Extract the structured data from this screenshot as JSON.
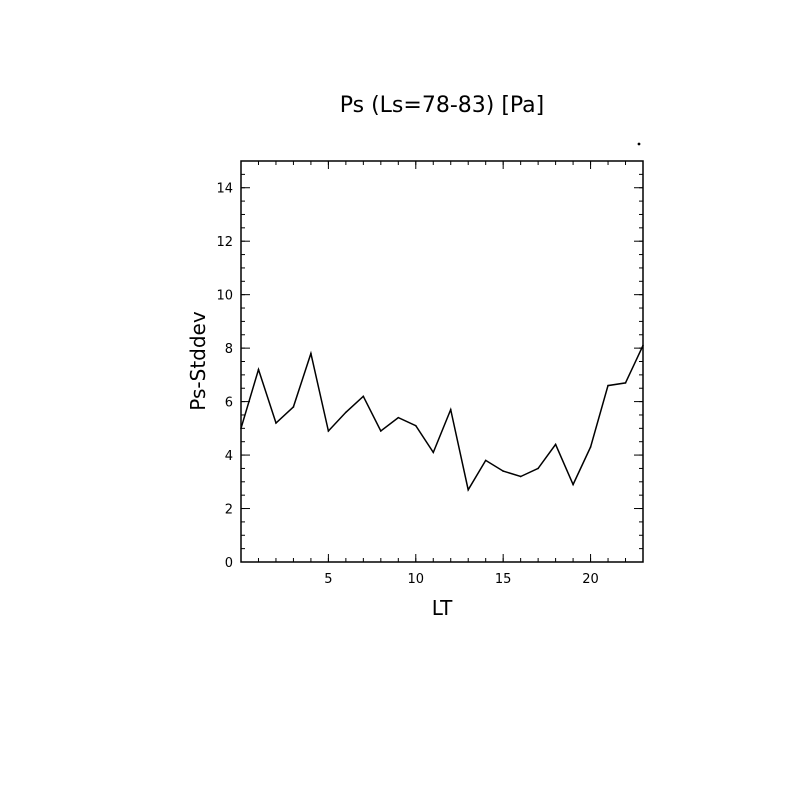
{
  "chart_data": {
    "type": "line",
    "title": "Ps (Ls=78-83) [Pa]",
    "xlabel": "LT",
    "ylabel": "Ps-Stddev",
    "xlim": [
      0,
      23
    ],
    "ylim": [
      0,
      15
    ],
    "xticks": [
      5,
      10,
      15,
      20
    ],
    "yticks": [
      0,
      2,
      4,
      6,
      8,
      10,
      12,
      14
    ],
    "x_minor_step": 1,
    "y_minor_step": 0.5,
    "grid": false,
    "line_color": "#000000",
    "series": [
      {
        "x": [
          0,
          1,
          2,
          3,
          4,
          5,
          6,
          7,
          8,
          9,
          10,
          11,
          12,
          13,
          14,
          15,
          16,
          17,
          18,
          19,
          20,
          21,
          22,
          23
        ],
        "values": [
          5.0,
          7.2,
          5.2,
          5.8,
          7.8,
          4.9,
          5.6,
          6.2,
          4.9,
          5.4,
          5.1,
          4.1,
          5.7,
          2.7,
          3.8,
          3.4,
          3.2,
          3.5,
          4.4,
          2.9,
          4.3,
          6.6,
          6.7,
          8.1
        ]
      }
    ]
  }
}
